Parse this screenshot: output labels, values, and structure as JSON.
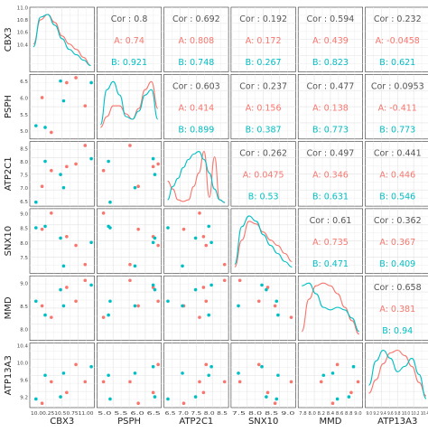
{
  "chart_data": {
    "type": "scatter-matrix",
    "colors": {
      "A": "#F8766D",
      "B": "#00BFC4"
    },
    "variables": [
      "CBX3",
      "PSPH",
      "ATP2C1",
      "SNX10",
      "MMD",
      "ATP13A3"
    ],
    "ranges": {
      "CBX3": [
        9.95,
        11.0
      ],
      "PSPH": [
        4.75,
        6.7
      ],
      "ATP2C1": [
        6.3,
        8.75
      ],
      "SNX10": [
        6.95,
        9.15
      ],
      "MMD": [
        7.75,
        9.15
      ],
      "ATP13A3": [
        8.95,
        10.45
      ]
    },
    "axis_ticks": {
      "CBX3": [
        "10.0",
        "10.25",
        "10.5",
        "10.75",
        "11.00"
      ],
      "PSPH": [
        "5.0",
        "5.5",
        "6.0",
        "6.5"
      ],
      "ATP2C1": [
        "6.5",
        "7.0",
        "7.5",
        "8.0",
        "8.5"
      ],
      "SNX10": [
        "7.5",
        "8.0",
        "8.5",
        "9.0"
      ],
      "MMD": [
        "7.8",
        "8.0",
        "8.2",
        "8.4",
        "8.6",
        "8.8",
        "9.0"
      ],
      "ATP13A3": [
        "9.0",
        "9.2",
        "9.4",
        "9.6",
        "9.8",
        "10.0",
        "10.2",
        "10.4"
      ]
    },
    "y_ticks": {
      "CBX3": [
        "10.4",
        "10.6",
        "10.8",
        "11.0"
      ],
      "PSPH": [
        "5.0",
        "5.5",
        "6.0",
        "6.5"
      ],
      "ATP2C1": [
        "6.5",
        "7.0",
        "7.5",
        "8.0",
        "8.5"
      ],
      "SNX10": [
        "7.5",
        "8.0",
        "8.5",
        "9.0"
      ],
      "MMD": [
        "8.0",
        "8.5",
        "9.0"
      ],
      "ATP13A3": [
        "9.2",
        "9.6",
        "10.0",
        "10.4"
      ]
    },
    "x_tick_strings": {
      "CBX3": "10.00.2510.50.7511.00",
      "PSPH": "5.0 5.5 6.0 6.5",
      "ATP2C1": "6.5 7.0 7.5 8.0 8.5",
      "SNX10": "7.5 8.0 8.5 9.0",
      "MMD": "7.8 8.0 8.2 8.4 8.6 8.8 9.0",
      "ATP13A3": "9.0 9.2 9.4 9.6 9.8 10.0 10.2 10.4"
    },
    "points": {
      "A": {
        "CBX3": [
          10.3,
          10.55,
          10.7,
          10.85,
          10.15
        ],
        "PSPH": [
          4.95,
          6.45,
          6.6,
          5.75,
          6.0
        ],
        "ATP2C1": [
          7.65,
          7.8,
          7.9,
          8.6,
          7.05
        ],
        "SNX10": [
          9.0,
          8.2,
          7.9,
          7.25,
          8.45
        ],
        "MMD": [
          8.25,
          8.9,
          8.6,
          9.05,
          8.5
        ],
        "ATP13A3": [
          9.55,
          9.3,
          9.95,
          9.55,
          9.05
        ]
      },
      "B": {
        "CBX3": [
          10.2,
          10.45,
          10.95,
          10.5,
          10.05
        ],
        "PSPH": [
          5.1,
          6.5,
          6.45,
          5.9,
          5.15
        ],
        "ATP2C1": [
          8.0,
          7.5,
          8.1,
          7.0,
          6.45
        ],
        "SNX10": [
          8.55,
          8.15,
          8.0,
          7.2,
          8.5
        ],
        "MMD": [
          8.3,
          8.85,
          8.95,
          8.5,
          8.6
        ],
        "ATP13A3": [
          9.7,
          9.2,
          9.9,
          9.75,
          9.15
        ]
      }
    },
    "correlations": [
      {
        "row": 0,
        "col": 1,
        "cor": "Cor : 0.8",
        "a": "A: 0.74",
        "b": "B: 0.921"
      },
      {
        "row": 0,
        "col": 2,
        "cor": "Cor : 0.692",
        "a": "A: 0.808",
        "b": "B: 0.748"
      },
      {
        "row": 0,
        "col": 3,
        "cor": "Cor : 0.192",
        "a": "A: 0.172",
        "b": "B: 0.267"
      },
      {
        "row": 0,
        "col": 4,
        "cor": "Cor : 0.594",
        "a": "A: 0.439",
        "b": "B: 0.823"
      },
      {
        "row": 0,
        "col": 5,
        "cor": "Cor : 0.232",
        "a": "A: -0.0458",
        "b": "B: 0.621"
      },
      {
        "row": 1,
        "col": 2,
        "cor": "Cor : 0.603",
        "a": "A: 0.414",
        "b": "B: 0.899"
      },
      {
        "row": 1,
        "col": 3,
        "cor": "Cor : 0.237",
        "a": "A: 0.156",
        "b": "B: 0.387"
      },
      {
        "row": 1,
        "col": 4,
        "cor": "Cor : 0.477",
        "a": "A: 0.138",
        "b": "B: 0.773"
      },
      {
        "row": 1,
        "col": 5,
        "cor": "Cor : 0.0953",
        "a": "A: -0.411",
        "b": "B: 0.773"
      },
      {
        "row": 2,
        "col": 3,
        "cor": "Cor : 0.262",
        "a": "A: 0.0475",
        "b": "B: 0.53"
      },
      {
        "row": 2,
        "col": 4,
        "cor": "Cor : 0.497",
        "a": "A: 0.346",
        "b": "B: 0.631"
      },
      {
        "row": 2,
        "col": 5,
        "cor": "Cor : 0.441",
        "a": "A: 0.446",
        "b": "B: 0.546"
      },
      {
        "row": 3,
        "col": 4,
        "cor": "Cor : 0.61",
        "a": "A: 0.735",
        "b": "B: 0.471"
      },
      {
        "row": 3,
        "col": 5,
        "cor": "Cor : 0.362",
        "a": "A: 0.367",
        "b": "B: 0.409"
      },
      {
        "row": 4,
        "col": 5,
        "cor": "Cor : 0.658",
        "a": "A: 0.381",
        "b": "B: 0.94"
      }
    ],
    "densities": [
      {
        "var": "CBX3",
        "A": [
          0.45,
          0.9,
          1.0,
          0.85,
          0.6,
          0.45,
          0.35,
          0.2,
          0.05
        ],
        "B": [
          0.4,
          0.95,
          1.0,
          0.8,
          0.55,
          0.35,
          0.25,
          0.15,
          0.05
        ]
      },
      {
        "var": "PSPH",
        "A": [
          0.15,
          0.35,
          0.55,
          0.55,
          0.4,
          0.3,
          0.5,
          0.85,
          1.0,
          0.5
        ],
        "B": [
          0.2,
          0.85,
          1.0,
          0.75,
          0.35,
          0.3,
          0.45,
          0.75,
          0.85,
          0.3
        ]
      },
      {
        "var": "ATP2C1",
        "A": [
          0.4,
          0.25,
          0.05,
          0.02,
          0.05,
          0.3,
          0.55,
          0.95,
          0.1,
          0.85,
          0.05,
          0.0
        ],
        "B": [
          0.05,
          0.3,
          0.45,
          0.65,
          0.8,
          0.9,
          0.95,
          0.8,
          0.55,
          0.25,
          0.05,
          0.0
        ]
      },
      {
        "var": "SNX10",
        "A": [
          0.05,
          0.55,
          0.9,
          0.85,
          0.7,
          0.55,
          0.45,
          0.3,
          0.15
        ],
        "B": [
          0.1,
          0.8,
          1.0,
          0.9,
          0.65,
          0.45,
          0.3,
          0.15,
          0.05
        ]
      },
      {
        "var": "MMD",
        "A": [
          0.1,
          0.7,
          0.95,
          1.0,
          0.95,
          0.8,
          0.55,
          0.3,
          0.05
        ],
        "B": [
          0.95,
          1.0,
          0.8,
          0.55,
          0.5,
          0.55,
          0.5,
          0.35,
          0.1
        ]
      },
      {
        "var": "ATP13A3",
        "A": [
          0.2,
          0.45,
          0.75,
          0.95,
          1.0,
          0.9,
          0.7,
          0.4,
          0.15
        ],
        "B": [
          0.35,
          0.8,
          1.0,
          0.85,
          0.6,
          0.7,
          0.85,
          0.55,
          0.1
        ]
      }
    ]
  }
}
